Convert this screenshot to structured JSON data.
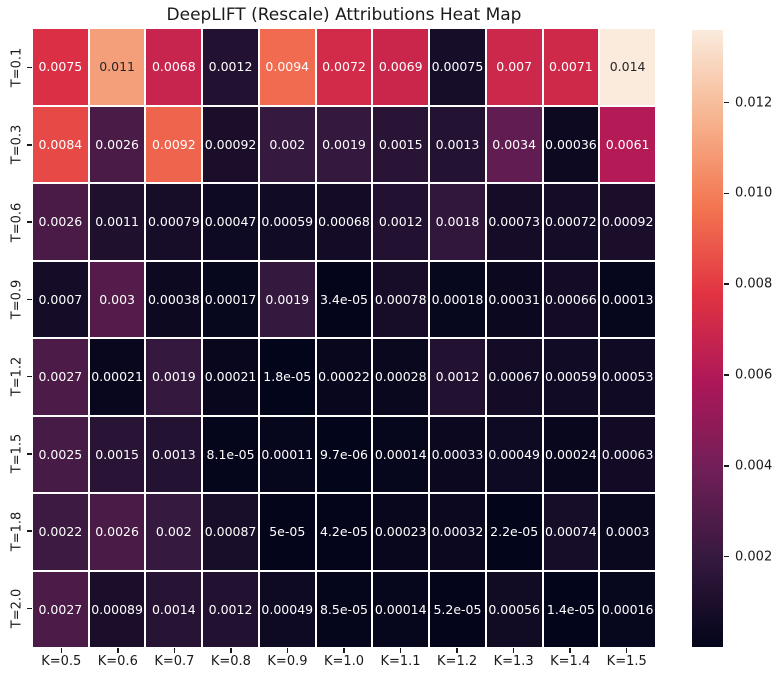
{
  "chart_data": {
    "type": "heatmap",
    "title": "DeepLIFT (Rescale) Attributions Heat Map",
    "x_labels": [
      "K=0.5",
      "K=0.6",
      "K=0.7",
      "K=0.8",
      "K=0.9",
      "K=1.0",
      "K=1.1",
      "K=1.2",
      "K=1.3",
      "K=1.4",
      "K=1.5"
    ],
    "y_labels": [
      "T=0.1",
      "T=0.3",
      "T=0.6",
      "T=0.9",
      "T=1.2",
      "T=1.5",
      "T=1.8",
      "T=2.0"
    ],
    "values": [
      [
        0.0075,
        0.011,
        0.0068,
        0.0012,
        0.0094,
        0.0072,
        0.0069,
        0.00075,
        0.007,
        0.0071,
        0.014
      ],
      [
        0.0084,
        0.0026,
        0.0092,
        0.00092,
        0.002,
        0.0019,
        0.0015,
        0.0013,
        0.0034,
        0.00036,
        0.0061
      ],
      [
        0.0026,
        0.0011,
        0.00079,
        0.00047,
        0.00059,
        0.00068,
        0.0012,
        0.0018,
        0.00073,
        0.00072,
        0.00092
      ],
      [
        0.0007,
        0.003,
        0.00038,
        0.00017,
        0.0019,
        3.4e-05,
        0.00078,
        0.00018,
        0.00031,
        0.00066,
        0.00013
      ],
      [
        0.0027,
        0.00021,
        0.0019,
        0.00021,
        1.8e-05,
        0.00022,
        0.00028,
        0.0012,
        0.00067,
        0.00059,
        0.00053
      ],
      [
        0.0025,
        0.0015,
        0.0013,
        8.1e-05,
        0.00011,
        9.7e-06,
        0.00014,
        0.00033,
        0.00049,
        0.00024,
        0.00063
      ],
      [
        0.0022,
        0.0026,
        0.002,
        0.00087,
        5e-05,
        4.2e-05,
        0.00023,
        0.00032,
        2.2e-05,
        0.00074,
        0.0003
      ],
      [
        0.0027,
        0.00089,
        0.0014,
        0.0012,
        0.00049,
        8.5e-05,
        0.00014,
        5.2e-05,
        0.00056,
        1.4e-05,
        0.00016
      ]
    ],
    "annotations": [
      [
        "0.0075",
        "0.011",
        "0.0068",
        "0.0012",
        "0.0094",
        "0.0072",
        "0.0069",
        "0.00075",
        "0.007",
        "0.0071",
        "0.014"
      ],
      [
        "0.0084",
        "0.0026",
        "0.0092",
        "0.00092",
        "0.002",
        "0.0019",
        "0.0015",
        "0.0013",
        "0.0034",
        "0.00036",
        "0.0061"
      ],
      [
        "0.0026",
        "0.0011",
        "0.00079",
        "0.00047",
        "0.00059",
        "0.00068",
        "0.0012",
        "0.0018",
        "0.00073",
        "0.00072",
        "0.00092"
      ],
      [
        "0.0007",
        "0.003",
        "0.00038",
        "0.00017",
        "0.0019",
        "3.4e-05",
        "0.00078",
        "0.00018",
        "0.00031",
        "0.00066",
        "0.00013"
      ],
      [
        "0.0027",
        "0.00021",
        "0.0019",
        "0.00021",
        "1.8e-05",
        "0.00022",
        "0.00028",
        "0.0012",
        "0.00067",
        "0.00059",
        "0.00053"
      ],
      [
        "0.0025",
        "0.0015",
        "0.0013",
        "8.1e-05",
        "0.00011",
        "9.7e-06",
        "0.00014",
        "0.00033",
        "0.00049",
        "0.00024",
        "0.00063"
      ],
      [
        "0.0022",
        "0.0026",
        "0.002",
        "0.00087",
        "5e-05",
        "4.2e-05",
        "0.00023",
        "0.00032",
        "2.2e-05",
        "0.00074",
        "0.0003"
      ],
      [
        "0.0027",
        "0.00089",
        "0.0014",
        "0.0012",
        "0.00049",
        "8.5e-05",
        "0.00014",
        "5.2e-05",
        "0.00056",
        "1.4e-05",
        "0.00016"
      ]
    ],
    "colorbar": {
      "tick_values": [
        0.012,
        0.01,
        0.008,
        0.006,
        0.004,
        0.002
      ],
      "tick_labels": [
        "0.012",
        "0.010",
        "0.008",
        "0.006",
        "0.004",
        "0.002"
      ],
      "vmin": 9.7e-06,
      "vmax": 0.0136,
      "position": "right"
    },
    "colormap": {
      "name": "rocket",
      "anchors": [
        {
          "t": 0.0,
          "color": "#03051A"
        },
        {
          "t": 0.143,
          "color": "#35193E"
        },
        {
          "t": 0.286,
          "color": "#701F57"
        },
        {
          "t": 0.429,
          "color": "#AD1759"
        },
        {
          "t": 0.571,
          "color": "#E13342"
        },
        {
          "t": 0.714,
          "color": "#F37651"
        },
        {
          "t": 0.857,
          "color": "#F6B48F"
        },
        {
          "t": 1.0,
          "color": "#FAEBDD"
        }
      ]
    },
    "grid": {
      "linecolor": "#ffffff",
      "linewidth": 2
    },
    "annot_text_light": "#ffffff",
    "annot_text_dark": "#262626",
    "axis_text_color": "#1a1a1a",
    "background": "#ffffff"
  }
}
